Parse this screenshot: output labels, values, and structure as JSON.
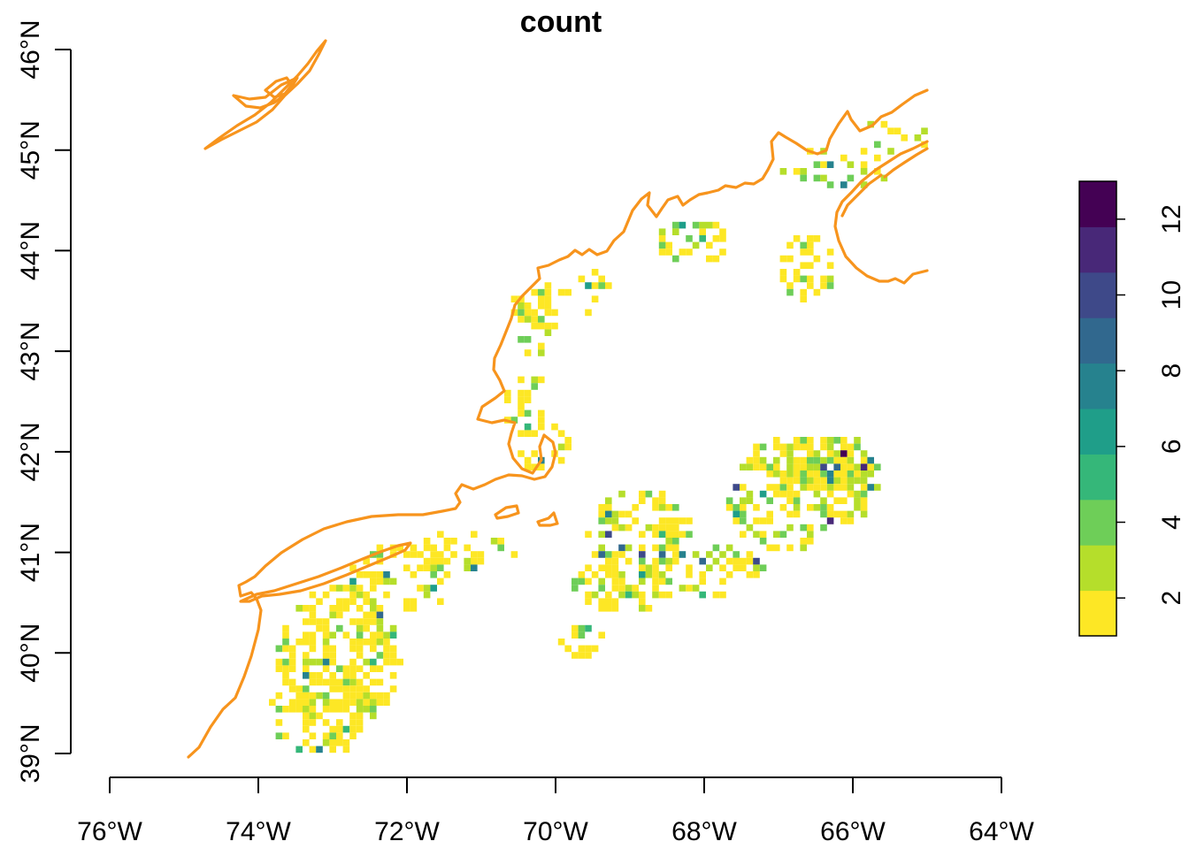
{
  "title": "count",
  "map": {
    "x_ticks": [
      "76°W",
      "74°W",
      "72°W",
      "70°W",
      "68°W",
      "66°W",
      "64°W"
    ],
    "y_ticks": [
      "39°N",
      "40°N",
      "41°N",
      "42°N",
      "43°N",
      "44°N",
      "45°N",
      "46°N"
    ],
    "coastline_color": "#f7941d"
  },
  "legend": {
    "ticks": [
      "2",
      "4",
      "6",
      "8",
      "10",
      "12"
    ],
    "colors": [
      "#fde725",
      "#b5de2b",
      "#6ece58",
      "#35b779",
      "#1f9e89",
      "#26828e",
      "#31688e",
      "#3e4989",
      "#482878",
      "#440154"
    ]
  },
  "chart_data": {
    "type": "heatmap",
    "title": "count",
    "xlabel": "",
    "ylabel": "",
    "xlim": [
      -76,
      -64
    ],
    "ylim": [
      39,
      46
    ],
    "x_tick_values": [
      -76,
      -74,
      -72,
      -70,
      -68,
      -66,
      -64
    ],
    "y_tick_values": [
      39,
      40,
      41,
      42,
      43,
      44,
      45,
      46
    ],
    "legend_range": [
      1,
      13
    ],
    "legend_tick_values": [
      2,
      4,
      6,
      8,
      10,
      12
    ],
    "legend_placement": "right",
    "grid": false
  }
}
